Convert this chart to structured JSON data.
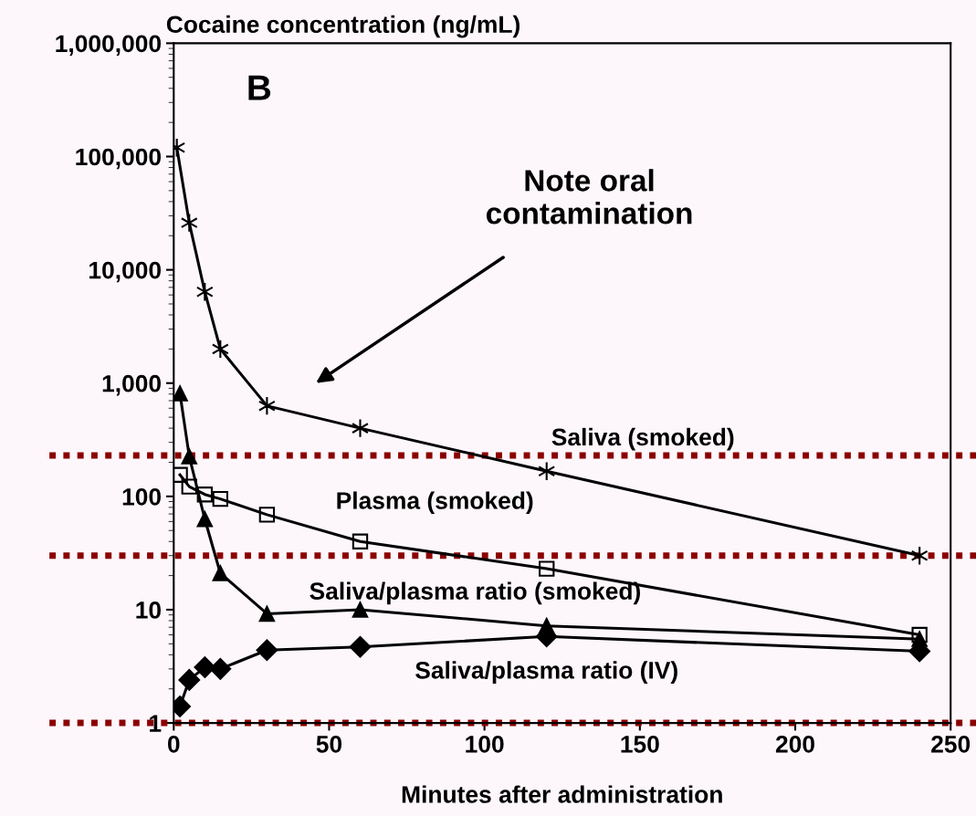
{
  "chart_data": {
    "type": "line",
    "ylabel": "Cocaine concentration (ng/mL)",
    "xlabel": "Minutes after administration",
    "log": "y",
    "xlim": [
      0,
      250
    ],
    "xticks": [
      0,
      50,
      100,
      150,
      200,
      250
    ],
    "ylim": [
      1,
      1000000
    ],
    "yticks": [
      {
        "value": 1,
        "label": "1"
      },
      {
        "value": 10,
        "label": "10"
      },
      {
        "value": 100,
        "label": "100"
      },
      {
        "value": 1000,
        "label": "1,000"
      },
      {
        "value": 10000,
        "label": "10,000"
      },
      {
        "value": 100000,
        "label": "100,000"
      },
      {
        "value": 1000000,
        "label": "1,000,000"
      }
    ],
    "grid": false,
    "legend": false,
    "line_style": "solid",
    "series": [
      {
        "name": "Saliva (smoked)",
        "color": "#000000",
        "marker": "cross",
        "x": [
          1,
          5,
          10,
          15,
          30,
          60,
          120,
          240
        ],
        "values": [
          120000,
          26000,
          6400,
          2000,
          630,
          400,
          167,
          30
        ]
      },
      {
        "name": "Plasma (smoked)",
        "color": "#000000",
        "marker": "square",
        "x": [
          2,
          5,
          10,
          15,
          30,
          60,
          120,
          240
        ],
        "values": [
          155,
          122,
          104,
          95,
          69,
          40,
          23,
          6
        ]
      },
      {
        "name": "Saliva/plasma ratio (smoked)",
        "color": "#000000",
        "marker": "triangle",
        "x": [
          2,
          5,
          10,
          15,
          30,
          60,
          120,
          240
        ],
        "values": [
          810,
          225,
          63,
          21,
          9.2,
          10,
          7.2,
          5.5
        ]
      },
      {
        "name": "Saliva/plasma ratio (IV)",
        "color": "#000000",
        "marker": "diamond",
        "x": [
          2,
          5,
          10,
          15,
          30,
          60,
          120,
          240
        ],
        "values": [
          1.4,
          2.4,
          3.1,
          3.0,
          4.4,
          4.7,
          5.8,
          4.3
        ]
      }
    ],
    "ref_lines": [
      {
        "axis": "y",
        "value": 230,
        "color": "#8b0000",
        "line_style": "dotted"
      },
      {
        "axis": "y",
        "value": 30,
        "color": "#8b0000",
        "line_style": "dotted"
      },
      {
        "axis": "y",
        "value": 1,
        "color": "#8b0000",
        "line_style": "dotted"
      }
    ],
    "annotations": [
      "B",
      "Note oral\ncontamination"
    ]
  }
}
